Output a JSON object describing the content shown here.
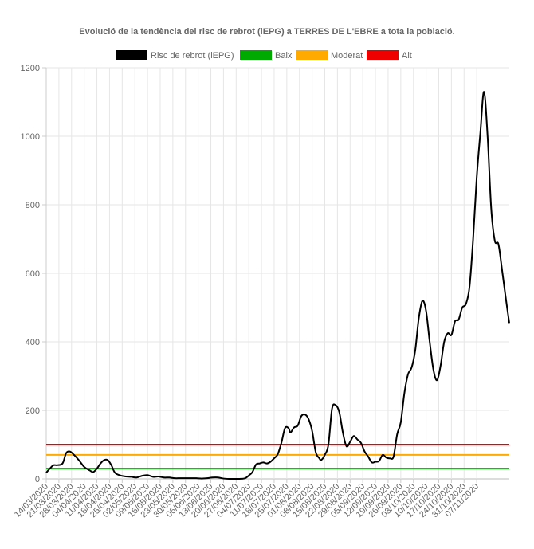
{
  "chart_data": {
    "type": "line",
    "title": "Evolució de la tendència del risc de rebrot (iEPG) a TERRES DE L'EBRE a tota la població.",
    "legend_position": "top",
    "grid": true,
    "xlabel": "",
    "ylabel": "",
    "ylim": [
      0,
      1200
    ],
    "yticks": [
      0,
      200,
      400,
      600,
      800,
      1000,
      1200
    ],
    "x_start": "14/03/2020",
    "x_end": "07/11/2020",
    "x_tick_labels": [
      "14/03/2020",
      "21/03/2020",
      "28/03/2020",
      "04/04/2020",
      "11/04/2020",
      "18/04/2020",
      "25/04/2020",
      "02/05/2020",
      "09/05/2020",
      "16/05/2020",
      "23/05/2020",
      "30/05/2020",
      "06/06/2020",
      "13/06/2020",
      "20/06/2020",
      "27/06/2020",
      "04/07/2020",
      "11/07/2020",
      "18/07/2020",
      "25/07/2020",
      "01/08/2020",
      "08/08/2020",
      "15/08/2020",
      "22/08/2020",
      "29/08/2020",
      "05/09/2020",
      "12/09/2020",
      "19/09/2020",
      "26/09/2020",
      "03/10/2020",
      "10/10/2020",
      "17/10/2020",
      "24/10/2020",
      "31/10/2020",
      "07/11/2020"
    ],
    "series": [
      {
        "name": "Risc de rebrot (iEPG)",
        "color": "#000000",
        "points": [
          [
            "14/03/2020",
            18
          ],
          [
            "16/03/2020",
            30
          ],
          [
            "18/03/2020",
            40
          ],
          [
            "20/03/2020",
            40
          ],
          [
            "23/03/2020",
            45
          ],
          [
            "25/03/2020",
            75
          ],
          [
            "27/03/2020",
            80
          ],
          [
            "29/03/2020",
            72
          ],
          [
            "01/04/2020",
            55
          ],
          [
            "04/04/2020",
            35
          ],
          [
            "07/04/2020",
            25
          ],
          [
            "09/04/2020",
            20
          ],
          [
            "11/04/2020",
            30
          ],
          [
            "13/04/2020",
            45
          ],
          [
            "15/04/2020",
            55
          ],
          [
            "17/04/2020",
            55
          ],
          [
            "19/04/2020",
            40
          ],
          [
            "21/04/2020",
            18
          ],
          [
            "24/04/2020",
            10
          ],
          [
            "27/04/2020",
            7
          ],
          [
            "30/04/2020",
            6
          ],
          [
            "03/05/2020",
            4
          ],
          [
            "06/05/2020",
            9
          ],
          [
            "09/05/2020",
            11
          ],
          [
            "12/05/2020",
            6
          ],
          [
            "15/05/2020",
            7
          ],
          [
            "18/05/2020",
            4
          ],
          [
            "21/05/2020",
            4
          ],
          [
            "24/05/2020",
            2
          ],
          [
            "27/05/2020",
            2
          ],
          [
            "30/05/2020",
            2
          ],
          [
            "02/06/2020",
            2
          ],
          [
            "05/06/2020",
            2
          ],
          [
            "08/06/2020",
            1
          ],
          [
            "11/06/2020",
            2
          ],
          [
            "14/06/2020",
            4
          ],
          [
            "17/06/2020",
            4
          ],
          [
            "20/06/2020",
            1
          ],
          [
            "23/06/2020",
            0
          ],
          [
            "26/06/2020",
            0
          ],
          [
            "29/06/2020",
            0
          ],
          [
            "02/07/2020",
            2
          ],
          [
            "04/07/2020",
            10
          ],
          [
            "06/07/2020",
            20
          ],
          [
            "08/07/2020",
            42
          ],
          [
            "10/07/2020",
            45
          ],
          [
            "12/07/2020",
            48
          ],
          [
            "14/07/2020",
            45
          ],
          [
            "16/07/2020",
            50
          ],
          [
            "18/07/2020",
            60
          ],
          [
            "20/07/2020",
            72
          ],
          [
            "22/07/2020",
            105
          ],
          [
            "24/07/2020",
            148
          ],
          [
            "26/07/2020",
            148
          ],
          [
            "27/07/2020",
            135
          ],
          [
            "29/07/2020",
            150
          ],
          [
            "31/07/2020",
            155
          ],
          [
            "02/08/2020",
            183
          ],
          [
            "04/08/2020",
            188
          ],
          [
            "06/08/2020",
            175
          ],
          [
            "08/08/2020",
            140
          ],
          [
            "10/08/2020",
            78
          ],
          [
            "12/08/2020",
            60
          ],
          [
            "13/08/2020",
            55
          ],
          [
            "15/08/2020",
            70
          ],
          [
            "17/08/2020",
            100
          ],
          [
            "19/08/2020",
            205
          ],
          [
            "21/08/2020",
            215
          ],
          [
            "23/08/2020",
            195
          ],
          [
            "25/08/2020",
            135
          ],
          [
            "27/08/2020",
            95
          ],
          [
            "29/08/2020",
            108
          ],
          [
            "31/08/2020",
            125
          ],
          [
            "02/09/2020",
            115
          ],
          [
            "04/09/2020",
            105
          ],
          [
            "06/09/2020",
            80
          ],
          [
            "08/09/2020",
            65
          ],
          [
            "10/09/2020",
            48
          ],
          [
            "12/09/2020",
            50
          ],
          [
            "14/09/2020",
            52
          ],
          [
            "16/09/2020",
            70
          ],
          [
            "18/09/2020",
            62
          ],
          [
            "20/09/2020",
            60
          ],
          [
            "22/09/2020",
            65
          ],
          [
            "24/09/2020",
            130
          ],
          [
            "26/09/2020",
            165
          ],
          [
            "28/09/2020",
            250
          ],
          [
            "30/09/2020",
            305
          ],
          [
            "02/10/2020",
            325
          ],
          [
            "04/10/2020",
            375
          ],
          [
            "06/10/2020",
            470
          ],
          [
            "08/10/2020",
            520
          ],
          [
            "10/10/2020",
            490
          ],
          [
            "12/10/2020",
            400
          ],
          [
            "14/10/2020",
            320
          ],
          [
            "16/10/2020",
            288
          ],
          [
            "18/10/2020",
            330
          ],
          [
            "20/10/2020",
            400
          ],
          [
            "22/10/2020",
            425
          ],
          [
            "24/10/2020",
            420
          ],
          [
            "26/10/2020",
            460
          ],
          [
            "28/10/2020",
            465
          ],
          [
            "30/10/2020",
            500
          ],
          [
            "01/11/2020",
            510
          ],
          [
            "03/11/2020",
            560
          ],
          [
            "05/11/2020",
            700
          ],
          [
            "07/11/2020",
            880
          ],
          [
            "09/11/2020",
            1010
          ],
          [
            "11/11/2020",
            1130
          ],
          [
            "13/11/2020",
            1000
          ],
          [
            "15/11/2020",
            790
          ],
          [
            "17/11/2020",
            695
          ],
          [
            "19/11/2020",
            685
          ],
          [
            "21/11/2020",
            610
          ],
          [
            "23/11/2020",
            530
          ],
          [
            "25/11/2020",
            455
          ]
        ]
      },
      {
        "name": "Baix",
        "color": "#00aa00",
        "constant": 30
      },
      {
        "name": "Moderat",
        "color": "#ffaa00",
        "constant": 70
      },
      {
        "name": "Alt",
        "color": "#ee0000",
        "constant": 100
      }
    ]
  }
}
